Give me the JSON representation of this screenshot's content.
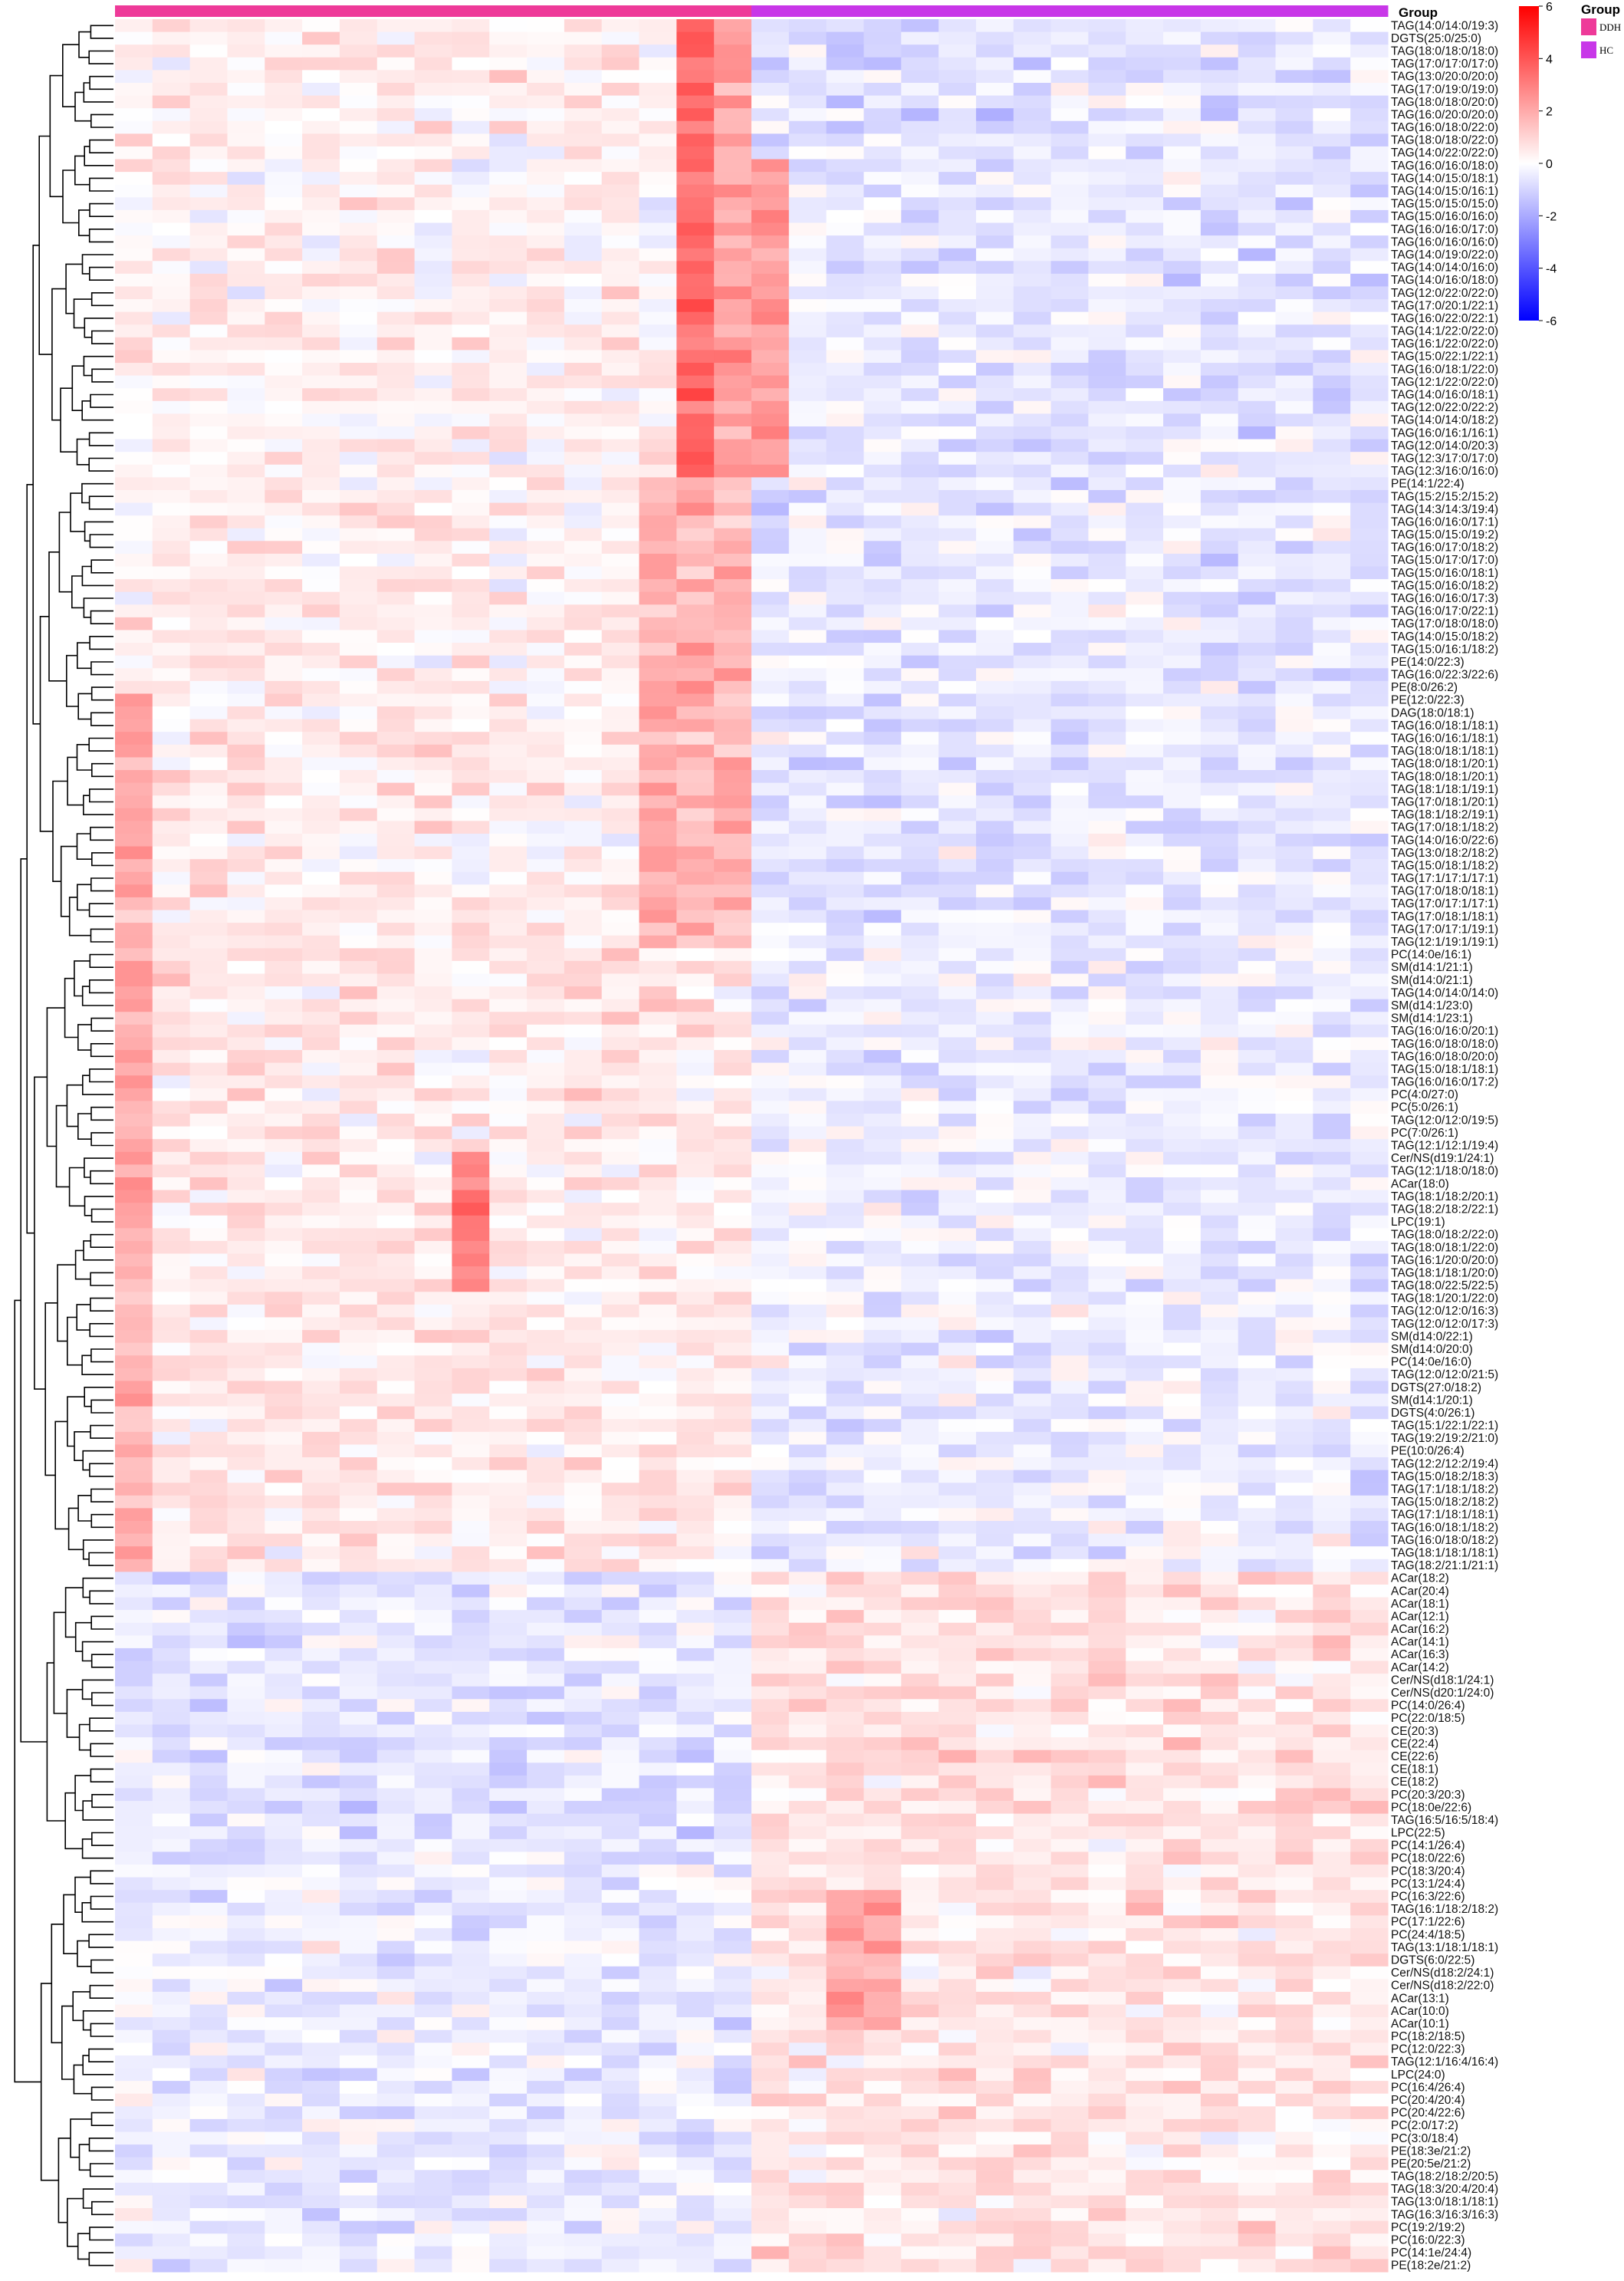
{
  "chart_data": {
    "type": "heatmap",
    "title": "",
    "xlabel": "",
    "ylabel": "",
    "annotation_title": "Group",
    "groups": [
      {
        "name": "DDH",
        "color": "#ee3a99",
        "n": 17
      },
      {
        "name": "HC",
        "color": "#c837e8",
        "n": 17
      }
    ],
    "colorbar": {
      "title": "Group",
      "range": [
        -6,
        6
      ],
      "ticks": [
        6,
        4,
        2,
        0,
        -2,
        -4,
        -6
      ],
      "low_color": "#0000ff",
      "mid_color": "#ffffff",
      "high_color": "#ff0000"
    },
    "columns": 34,
    "rows": [
      "TAG(14:0/14:0/19:3)",
      "DGTS(25:0/25:0)",
      "TAG(18:0/18:0/18:0)",
      "TAG(17:0/17:0/17:0)",
      "TAG(13:0/20:0/20:0)",
      "TAG(17:0/19:0/19:0)",
      "TAG(18:0/18:0/20:0)",
      "TAG(16:0/20:0/20:0)",
      "TAG(16:0/18:0/22:0)",
      "TAG(18:0/18:0/22:0)",
      "TAG(14:0/22:0/22:0)",
      "TAG(16:0/16:0/18:0)",
      "TAG(14:0/15:0/18:1)",
      "TAG(14:0/15:0/16:1)",
      "TAG(15:0/15:0/15:0)",
      "TAG(15:0/16:0/16:0)",
      "TAG(16:0/16:0/17:0)",
      "TAG(16:0/16:0/16:0)",
      "TAG(14:0/19:0/22:0)",
      "TAG(14:0/14:0/16:0)",
      "TAG(14:0/16:0/18:0)",
      "TAG(12:0/22:0/22:0)",
      "TAG(17:0/20:1/22:1)",
      "TAG(16:0/22:0/22:1)",
      "TAG(14:1/22:0/22:0)",
      "TAG(16:1/22:0/22:0)",
      "TAG(15:0/22:1/22:1)",
      "TAG(16:0/18:1/22:0)",
      "TAG(12:1/22:0/22:0)",
      "TAG(14:0/16:0/18:1)",
      "TAG(12:0/22:0/22:2)",
      "TAG(14:0/14:0/18:2)",
      "TAG(16:0/16:1/16:1)",
      "TAG(12:0/14:0/20:3)",
      "TAG(12:3/17:0/17:0)",
      "TAG(12:3/16:0/16:0)",
      "PE(14:1/22:4)",
      "TAG(15:2/15:2/15:2)",
      "TAG(14:3/14:3/19:4)",
      "TAG(16:0/16:0/17:1)",
      "TAG(15:0/15:0/19:2)",
      "TAG(16:0/17:0/18:2)",
      "TAG(15:0/17:0/17:0)",
      "TAG(15:0/16:0/18:1)",
      "TAG(15:0/16:0/18:2)",
      "TAG(16:0/16:0/17:3)",
      "TAG(16:0/17:0/22:1)",
      "TAG(17:0/18:0/18:0)",
      "TAG(14:0/15:0/18:2)",
      "TAG(15:0/16:1/18:2)",
      "PE(14:0/22:3)",
      "TAG(16:0/22:3/22:6)",
      "PE(8:0/26:2)",
      "PE(12:0/22:3)",
      "DAG(18:0/18:1)",
      "TAG(16:0/18:1/18:1)",
      "TAG(16:0/16:1/18:1)",
      "TAG(18:0/18:1/18:1)",
      "TAG(18:0/18:1/20:1)",
      "TAG(18:0/18:1/20:1)",
      "TAG(18:1/18:1/19:1)",
      "TAG(17:0/18:1/20:1)",
      "TAG(18:1/18:2/19:1)",
      "TAG(17:0/18:1/18:2)",
      "TAG(14:0/16:0/22:6)",
      "TAG(13:0/18:2/18:2)",
      "TAG(15:0/18:1/18:2)",
      "TAG(17:1/17:1/17:1)",
      "TAG(17:0/18:0/18:1)",
      "TAG(17:0/17:1/17:1)",
      "TAG(17:0/18:1/18:1)",
      "TAG(17:0/17:1/19:1)",
      "TAG(12:1/19:1/19:1)",
      "PC(14:0e/16:1)",
      "SM(d14:1/21:1)",
      "SM(d14:0/21:1)",
      "TAG(14:0/14:0/14:0)",
      "SM(d14:1/23:0)",
      "SM(d14:1/23:1)",
      "TAG(16:0/16:0/20:1)",
      "TAG(16:0/18:0/18:0)",
      "TAG(16:0/18:0/20:0)",
      "TAG(15:0/18:1/18:1)",
      "TAG(16:0/16:0/17:2)",
      "PC(4:0/27:0)",
      "PC(5:0/26:1)",
      "TAG(12:0/12:0/19:5)",
      "PC(7:0/26:1)",
      "TAG(12:1/12:1/19:4)",
      "Cer/NS(d19:1/24:1)",
      "TAG(12:1/18:0/18:0)",
      "ACar(18:0)",
      "TAG(18:1/18:2/20:1)",
      "TAG(18:2/18:2/22:1)",
      "LPC(19:1)",
      "TAG(18:0/18:2/22:0)",
      "TAG(18:0/18:1/22:0)",
      "TAG(16:1/20:0/20:0)",
      "TAG(18:1/18:1/20:0)",
      "TAG(18:0/22:5/22:5)",
      "TAG(18:1/20:1/22:0)",
      "TAG(12:0/12:0/16:3)",
      "TAG(12:0/12:0/17:3)",
      "SM(d14:0/22:1)",
      "SM(d14:0/20:0)",
      "PC(14:0e/16:0)",
      "TAG(12:0/12:0/21:5)",
      "DGTS(27:0/18:2)",
      "SM(d14:1/20:1)",
      "DGTS(4:0/26:1)",
      "TAG(15:1/22:1/22:1)",
      "TAG(19:2/19:2/21:0)",
      "PE(10:0/26:4)",
      "TAG(12:2/12:2/19:4)",
      "TAG(15:0/18:2/18:3)",
      "TAG(17:1/18:1/18:2)",
      "TAG(15:0/18:2/18:2)",
      "TAG(17:1/18:1/18:1)",
      "TAG(16:0/18:1/18:2)",
      "TAG(16:0/18:0/18:2)",
      "TAG(18:1/18:1/18:1)",
      "TAG(18:2/21:1/21:1)",
      "ACar(18:2)",
      "ACar(20:4)",
      "ACar(18:1)",
      "ACar(12:1)",
      "ACar(16:2)",
      "ACar(14:1)",
      "ACar(16:3)",
      "ACar(14:2)",
      "Cer/NS(d18:1/24:1)",
      "Cer/NS(d20:1/24:0)",
      "PC(14:0/26:4)",
      "PC(22:0/18:5)",
      "CE(20:3)",
      "CE(22:4)",
      "CE(22:6)",
      "CE(18:1)",
      "CE(18:2)",
      "PC(20:3/20:3)",
      "PC(18:0e/22:6)",
      "TAG(16:5/16:5/18:4)",
      "LPC(22:5)",
      "PC(14:1/26:4)",
      "PC(18:0/22:6)",
      "PC(18:3/20:4)",
      "PC(13:1/24:4)",
      "PC(16:3/22:6)",
      "TAG(16:1/18:2/18:2)",
      "PC(17:1/22:6)",
      "PC(24:4/18:5)",
      "TAG(13:1/18:1/18:1)",
      "DGTS(6:0/22:5)",
      "Cer/NS(d18:2/24:1)",
      "Cer/NS(d18:2/22:0)",
      "ACar(13:1)",
      "ACar(10:0)",
      "ACar(10:1)",
      "PC(18:2/18:5)",
      "PC(12:0/22:3)",
      "TAG(12:1/16:4/16:4)",
      "LPC(24:0)",
      "PC(16:4/26:4)",
      "PC(20:4/20:4)",
      "PC(20:4/22:6)",
      "PC(2:0/17:2)",
      "PC(3:0/18:4)",
      "PE(18:3e/21:2)",
      "PE(20:5e/21:2)",
      "TAG(18:2/18:2/20:5)",
      "TAG(18:3/20:4/20:4)",
      "TAG(13:0/18:1/18:1)",
      "TAG(16:3/16:3/16:3)",
      "PC(19:2/19:2)",
      "PC(16:0/22:3)",
      "PC(14:1e/24:4)",
      "PE(18:2e/21:2)"
    ]
  }
}
